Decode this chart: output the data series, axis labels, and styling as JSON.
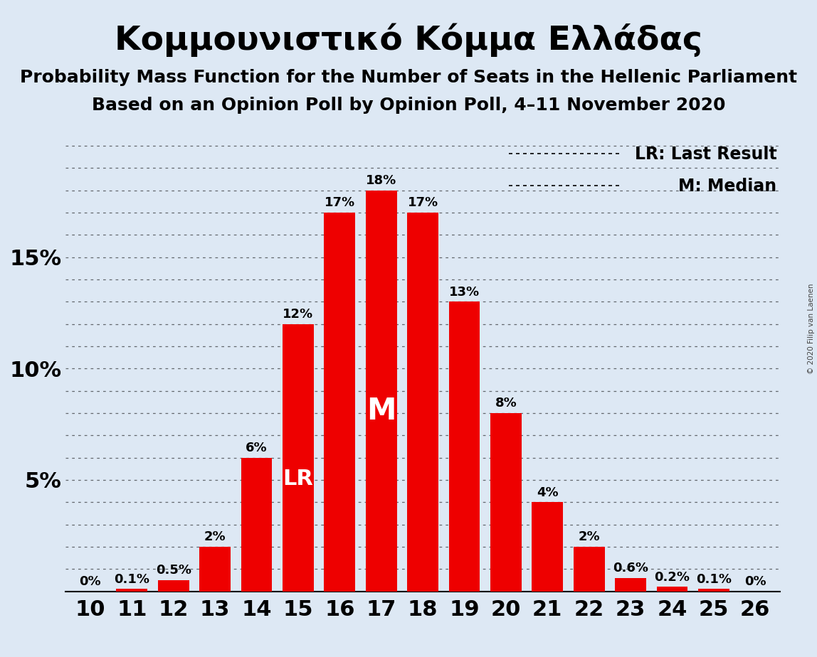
{
  "title": "Κομμουνιστικό Κόμμα Ελλάδας",
  "subtitle1": "Probability Mass Function for the Number of Seats in the Hellenic Parliament",
  "subtitle2": "Based on an Opinion Poll by Opinion Poll, 4–11 November 2020",
  "copyright": "© 2020 Filip van Laenen",
  "background_color": "#dde8f4",
  "bar_color": "#ee0000",
  "categories": [
    10,
    11,
    12,
    13,
    14,
    15,
    16,
    17,
    18,
    19,
    20,
    21,
    22,
    23,
    24,
    25,
    26
  ],
  "values": [
    0.0,
    0.1,
    0.5,
    2.0,
    6.0,
    12.0,
    17.0,
    18.0,
    17.0,
    13.0,
    8.0,
    4.0,
    2.0,
    0.6,
    0.2,
    0.1,
    0.0
  ],
  "labels": [
    "0%",
    "0.1%",
    "0.5%",
    "2%",
    "6%",
    "12%",
    "17%",
    "18%",
    "17%",
    "13%",
    "8%",
    "4%",
    "2%",
    "0.6%",
    "0.2%",
    "0.1%",
    "0%"
  ],
  "lr_seat": 15,
  "median_seat": 17,
  "ylim": [
    0,
    20.5
  ],
  "yticks": [
    0,
    5,
    10,
    15,
    20
  ],
  "ytick_labels": [
    "",
    "5%",
    "10%",
    "15%",
    ""
  ],
  "legend_lr": "LR: Last Result",
  "legend_m": "M: Median",
  "title_fontsize": 34,
  "subtitle_fontsize": 18,
  "label_fontsize": 13,
  "axis_fontsize": 22,
  "lr_label_fontsize": 22,
  "m_label_fontsize": 30,
  "legend_fontsize": 17,
  "grid_color": "#000000",
  "text_color": "#000000"
}
